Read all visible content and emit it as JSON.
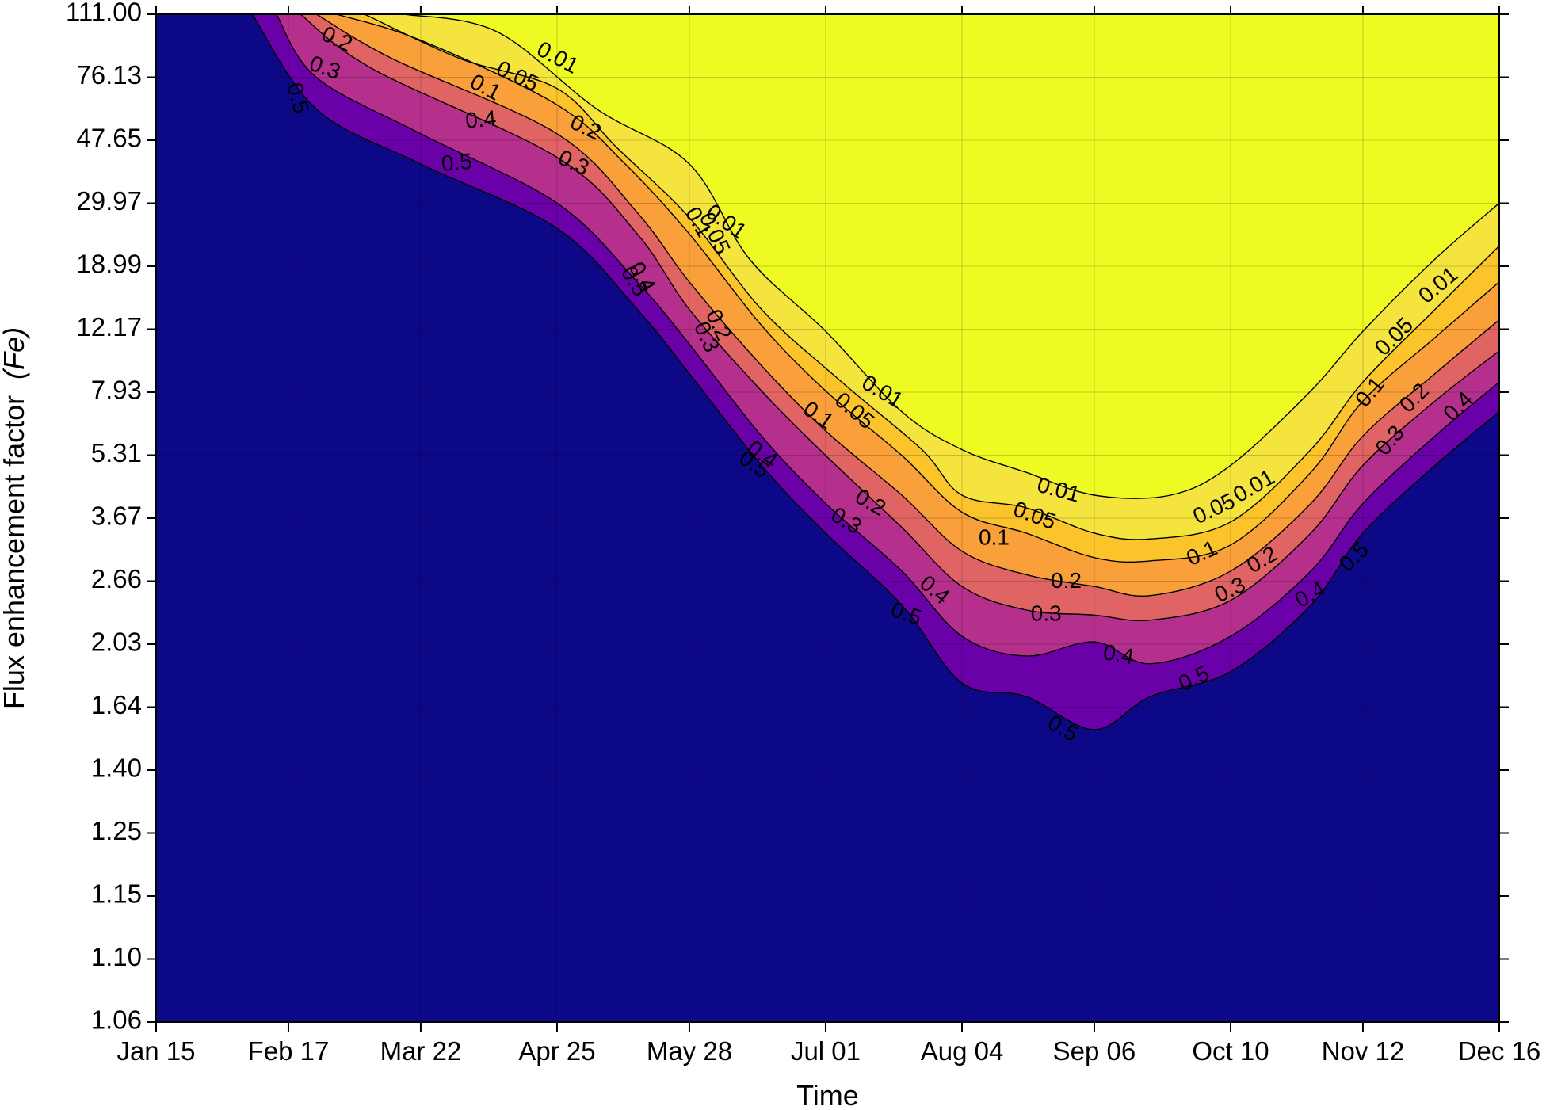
{
  "chart_data": {
    "type": "contour",
    "title": "",
    "xlabel": "Time",
    "ylabel": "Flux enhancement factor",
    "ylabel_italic": "(Fe)",
    "x_ticks": [
      "Jan 15",
      "Feb 17",
      "Mar 22",
      "Apr 25",
      "May 28",
      "Jul 01",
      "Aug 04",
      "Sep 06",
      "Oct 10",
      "Nov 12",
      "Dec 16"
    ],
    "y_ticks": [
      "111.00",
      "76.13",
      "47.65",
      "29.97",
      "18.99",
      "12.17",
      "7.93",
      "5.31",
      "3.67",
      "2.66",
      "2.03",
      "1.64",
      "1.40",
      "1.25",
      "1.15",
      "1.10",
      "1.06"
    ],
    "grid": true,
    "levels": [
      0.01,
      0.05,
      0.1,
      0.2,
      0.3,
      0.4,
      0.5
    ],
    "level_colors": {
      "below_0_01": "#eefa22",
      "0_01_to_0_05": "#f5e43e",
      "0_05_to_0_1": "#fbc42a",
      "0_1_to_0_2": "#f9a03a",
      "0_2_to_0_3": "#e06463",
      "0_3_to_0_4": "#b52f8c",
      "0_4_to_0_5": "#6a00a8",
      "above_0_5": "#0d0887"
    },
    "contours": [
      {
        "level": "0.01",
        "points": [
          [
            "Mar 18",
            "111.00"
          ],
          [
            "Apr 10",
            "100"
          ],
          [
            "May 5",
            "60"
          ],
          [
            "May 28",
            "40"
          ],
          [
            "Jun 12",
            "20"
          ],
          [
            "Jul 01",
            "12"
          ],
          [
            "Jul 20",
            "7"
          ],
          [
            "Aug 04",
            "5.5"
          ],
          [
            "Aug 20",
            "4.8"
          ],
          [
            "Sep 06",
            "4.2"
          ],
          [
            "Sep 25",
            "4.2"
          ],
          [
            "Oct 10",
            "5"
          ],
          [
            "Oct 30",
            "8"
          ],
          [
            "Nov 12",
            "12"
          ],
          [
            "Nov 30",
            "20"
          ],
          [
            "Dec 16",
            "30"
          ]
        ]
      },
      {
        "level": "0.05",
        "points": [
          [
            "Mar 8",
            "111.00"
          ],
          [
            "Apr 1",
            "85"
          ],
          [
            "Apr 25",
            "70"
          ],
          [
            "May 10",
            "45"
          ],
          [
            "May 28",
            "27"
          ],
          [
            "Jun 15",
            "14"
          ],
          [
            "Jul 05",
            "8.5"
          ],
          [
            "Jul 25",
            "5.5"
          ],
          [
            "Aug 04",
            "4.2"
          ],
          [
            "Aug 20",
            "3.9"
          ],
          [
            "Sep 06",
            "3.4"
          ],
          [
            "Sep 20",
            "3.3"
          ],
          [
            "Oct 10",
            "3.6"
          ],
          [
            "Oct 30",
            "5.5"
          ],
          [
            "Nov 12",
            "8.5"
          ],
          [
            "Nov 30",
            "14"
          ],
          [
            "Dec 16",
            "22"
          ]
        ]
      },
      {
        "level": "0.1",
        "points": [
          [
            "Mar 1",
            "111.00"
          ],
          [
            "Mar 22",
            "95"
          ],
          [
            "Apr 25",
            "62"
          ],
          [
            "May 12",
            "40"
          ],
          [
            "May 28",
            "24"
          ],
          [
            "Jun 15",
            "12.5"
          ],
          [
            "Jul 01",
            "8"
          ],
          [
            "Jul 20",
            "5.3"
          ],
          [
            "Aug 04",
            "3.8"
          ],
          [
            "Aug 20",
            "3.4"
          ],
          [
            "Sep 06",
            "3.0"
          ],
          [
            "Sep 20",
            "2.95"
          ],
          [
            "Oct 10",
            "3.2"
          ],
          [
            "Oct 30",
            "4.8"
          ],
          [
            "Nov 12",
            "7.5"
          ],
          [
            "Nov 30",
            "11.5"
          ],
          [
            "Dec 16",
            "17"
          ]
        ]
      },
      {
        "level": "0.2",
        "points": [
          [
            "Feb 24",
            "111.00"
          ],
          [
            "Mar 15",
            "85"
          ],
          [
            "Apr 25",
            "50"
          ],
          [
            "May 15",
            "28"
          ],
          [
            "May 28",
            "17"
          ],
          [
            "Jun 15",
            "9.5"
          ],
          [
            "Jul 01",
            "6.2"
          ],
          [
            "Jul 20",
            "4.2"
          ],
          [
            "Aug 04",
            "3.1"
          ],
          [
            "Aug 20",
            "2.75"
          ],
          [
            "Sep 06",
            "2.6"
          ],
          [
            "Sep 20",
            "2.5"
          ],
          [
            "Oct 10",
            "2.8"
          ],
          [
            "Oct 30",
            "4"
          ],
          [
            "Nov 12",
            "6"
          ],
          [
            "Nov 30",
            "9"
          ],
          [
            "Dec 16",
            "13"
          ]
        ]
      },
      {
        "level": "0.3",
        "points": [
          [
            "Feb 20",
            "111.00"
          ],
          [
            "Mar 10",
            "80"
          ],
          [
            "Apr 25",
            "42"
          ],
          [
            "May 15",
            "24"
          ],
          [
            "May 28",
            "14"
          ],
          [
            "Jun 15",
            "8"
          ],
          [
            "Jul 01",
            "5.3"
          ],
          [
            "Jul 20",
            "3.5"
          ],
          [
            "Aug 04",
            "2.6"
          ],
          [
            "Aug 20",
            "2.35"
          ],
          [
            "Sep 06",
            "2.3"
          ],
          [
            "Sep 20",
            "2.25"
          ],
          [
            "Oct 10",
            "2.45"
          ],
          [
            "Oct 30",
            "3.4"
          ],
          [
            "Nov 12",
            "5"
          ],
          [
            "Nov 30",
            "7.5"
          ],
          [
            "Dec 16",
            "10.5"
          ]
        ]
      },
      {
        "level": "0.4",
        "points": [
          [
            "Feb 14",
            "111.00"
          ],
          [
            "Feb 24",
            "76"
          ],
          [
            "Mar 22",
            "50"
          ],
          [
            "Apr 25",
            "30"
          ],
          [
            "May 15",
            "17"
          ],
          [
            "May 28",
            "11"
          ],
          [
            "Jun 15",
            "6"
          ],
          [
            "Jul 01",
            "4"
          ],
          [
            "Jul 20",
            "2.8"
          ],
          [
            "Aug 04",
            "2.1"
          ],
          [
            "Aug 20",
            "1.95"
          ],
          [
            "Sep 06",
            "2.05"
          ],
          [
            "Sep 20",
            "1.9"
          ],
          [
            "Oct 10",
            "2.1"
          ],
          [
            "Oct 30",
            "2.8"
          ],
          [
            "Nov 12",
            "4"
          ],
          [
            "Nov 30",
            "6"
          ],
          [
            "Dec 16",
            "8.5"
          ]
        ]
      },
      {
        "level": "0.5",
        "points": [
          [
            "Feb 8",
            "111.00"
          ],
          [
            "Feb 24",
            "60"
          ],
          [
            "Mar 22",
            "40"
          ],
          [
            "Apr 25",
            "25"
          ],
          [
            "May 15",
            "14"
          ],
          [
            "May 28",
            "9"
          ],
          [
            "Jun 15",
            "5"
          ],
          [
            "Jul 01",
            "3.4"
          ],
          [
            "Jul 20",
            "2.4"
          ],
          [
            "Aug 04",
            "1.78"
          ],
          [
            "Aug 20",
            "1.7"
          ],
          [
            "Sep 06",
            "1.55"
          ],
          [
            "Sep 20",
            "1.7"
          ],
          [
            "Oct 10",
            "1.85"
          ],
          [
            "Oct 30",
            "2.4"
          ],
          [
            "Nov 12",
            "3.4"
          ],
          [
            "Nov 30",
            "5"
          ],
          [
            "Dec 16",
            "7"
          ]
        ]
      }
    ],
    "contour_labels": [
      {
        "text": "0.2",
        "x": "Mar 1",
        "y": "95",
        "angle": 25
      },
      {
        "text": "0.3",
        "x": "Feb 26",
        "y": "80",
        "angle": 20
      },
      {
        "text": "0.5",
        "x": "Feb 19",
        "y": "65",
        "angle": 75
      },
      {
        "text": "0.01",
        "x": "Apr 25",
        "y": "85",
        "angle": 28
      },
      {
        "text": "0.05",
        "x": "Apr 15",
        "y": "76",
        "angle": 25
      },
      {
        "text": "0.1",
        "x": "Apr 7",
        "y": "70",
        "angle": 28
      },
      {
        "text": "0.4",
        "x": "Apr 6",
        "y": "55",
        "angle": -5
      },
      {
        "text": "0.5",
        "x": "Mar 31",
        "y": "40",
        "angle": -5
      },
      {
        "text": "0.2",
        "x": "May 2",
        "y": "52",
        "angle": 25
      },
      {
        "text": "0.3",
        "x": "Apr 29",
        "y": "40",
        "angle": 25
      },
      {
        "text": "0.4",
        "x": "May 16",
        "y": "17.5",
        "angle": 60
      },
      {
        "text": "0.5",
        "x": "May 14",
        "y": "17",
        "angle": 60
      },
      {
        "text": "0.01",
        "x": "Jun 6",
        "y": "26",
        "angle": 35
      },
      {
        "text": "0.05",
        "x": "Jun 3",
        "y": "24",
        "angle": 65
      },
      {
        "text": "0.1",
        "x": "May 30",
        "y": "26",
        "angle": 60
      },
      {
        "text": "0.2",
        "x": "Jun 4",
        "y": "12.5",
        "angle": 65
      },
      {
        "text": "0.3",
        "x": "Jun 1",
        "y": "11.5",
        "angle": 65
      },
      {
        "text": "0.4",
        "x": "Jun 15",
        "y": "5.3",
        "angle": 35
      },
      {
        "text": "0.5",
        "x": "Jun 13",
        "y": "5.0",
        "angle": 35
      },
      {
        "text": "0.01",
        "x": "Jul 15",
        "y": "7.9",
        "angle": 30
      },
      {
        "text": "0.05",
        "x": "Jul 08",
        "y": "7.0",
        "angle": 40
      },
      {
        "text": "0.1",
        "x": "Jun 29",
        "y": "6.8",
        "angle": 35
      },
      {
        "text": "0.2",
        "x": "Jul 12",
        "y": "4.0",
        "angle": 30
      },
      {
        "text": "0.3",
        "x": "Jul 06",
        "y": "3.6",
        "angle": 30
      },
      {
        "text": "0.4",
        "x": "Jul 28",
        "y": "2.55",
        "angle": 40
      },
      {
        "text": "0.5",
        "x": "Jul 21",
        "y": "2.3",
        "angle": 20
      },
      {
        "text": "0.01",
        "x": "Aug 28",
        "y": "4.3",
        "angle": 15
      },
      {
        "text": "0.05",
        "x": "Aug 22",
        "y": "3.7",
        "angle": 20
      },
      {
        "text": "0.1",
        "x": "Aug 12",
        "y": "3.3",
        "angle": 0
      },
      {
        "text": "0.2",
        "x": "Aug 30",
        "y": "2.65",
        "angle": 0
      },
      {
        "text": "0.3",
        "x": "Aug 25",
        "y": "2.3",
        "angle": 0
      },
      {
        "text": "0.4",
        "x": "Sep 12",
        "y": "1.95",
        "angle": 10
      },
      {
        "text": "0.5",
        "x": "Aug 29",
        "y": "1.55",
        "angle": 30
      },
      {
        "text": "0.01",
        "x": "Oct 16",
        "y": "4.4",
        "angle": -30
      },
      {
        "text": "0.05",
        "x": "Oct 06",
        "y": "3.85",
        "angle": -25
      },
      {
        "text": "0.1",
        "x": "Oct 03",
        "y": "3.05",
        "angle": -25
      },
      {
        "text": "0.2",
        "x": "Oct 18",
        "y": "2.95",
        "angle": -30
      },
      {
        "text": "0.3",
        "x": "Oct 10",
        "y": "2.55",
        "angle": -25
      },
      {
        "text": "0.4",
        "x": "Oct 30",
        "y": "2.5",
        "angle": -30
      },
      {
        "text": "0.5",
        "x": "Oct 01",
        "y": "1.8",
        "angle": -25
      },
      {
        "text": "0.5",
        "x": "Nov 10",
        "y": "3.0",
        "angle": -45
      },
      {
        "text": "0.01",
        "x": "Dec 01",
        "y": "16.5",
        "angle": -40
      },
      {
        "text": "0.05",
        "x": "Nov 20",
        "y": "11.5",
        "angle": -45
      },
      {
        "text": "0.1",
        "x": "Nov 14",
        "y": "7.9",
        "angle": -50
      },
      {
        "text": "0.2",
        "x": "Nov 25",
        "y": "7.6",
        "angle": -45
      },
      {
        "text": "0.3",
        "x": "Nov 19",
        "y": "5.8",
        "angle": -50
      },
      {
        "text": "0.4",
        "x": "Dec 06",
        "y": "7.2",
        "angle": -45
      }
    ]
  }
}
